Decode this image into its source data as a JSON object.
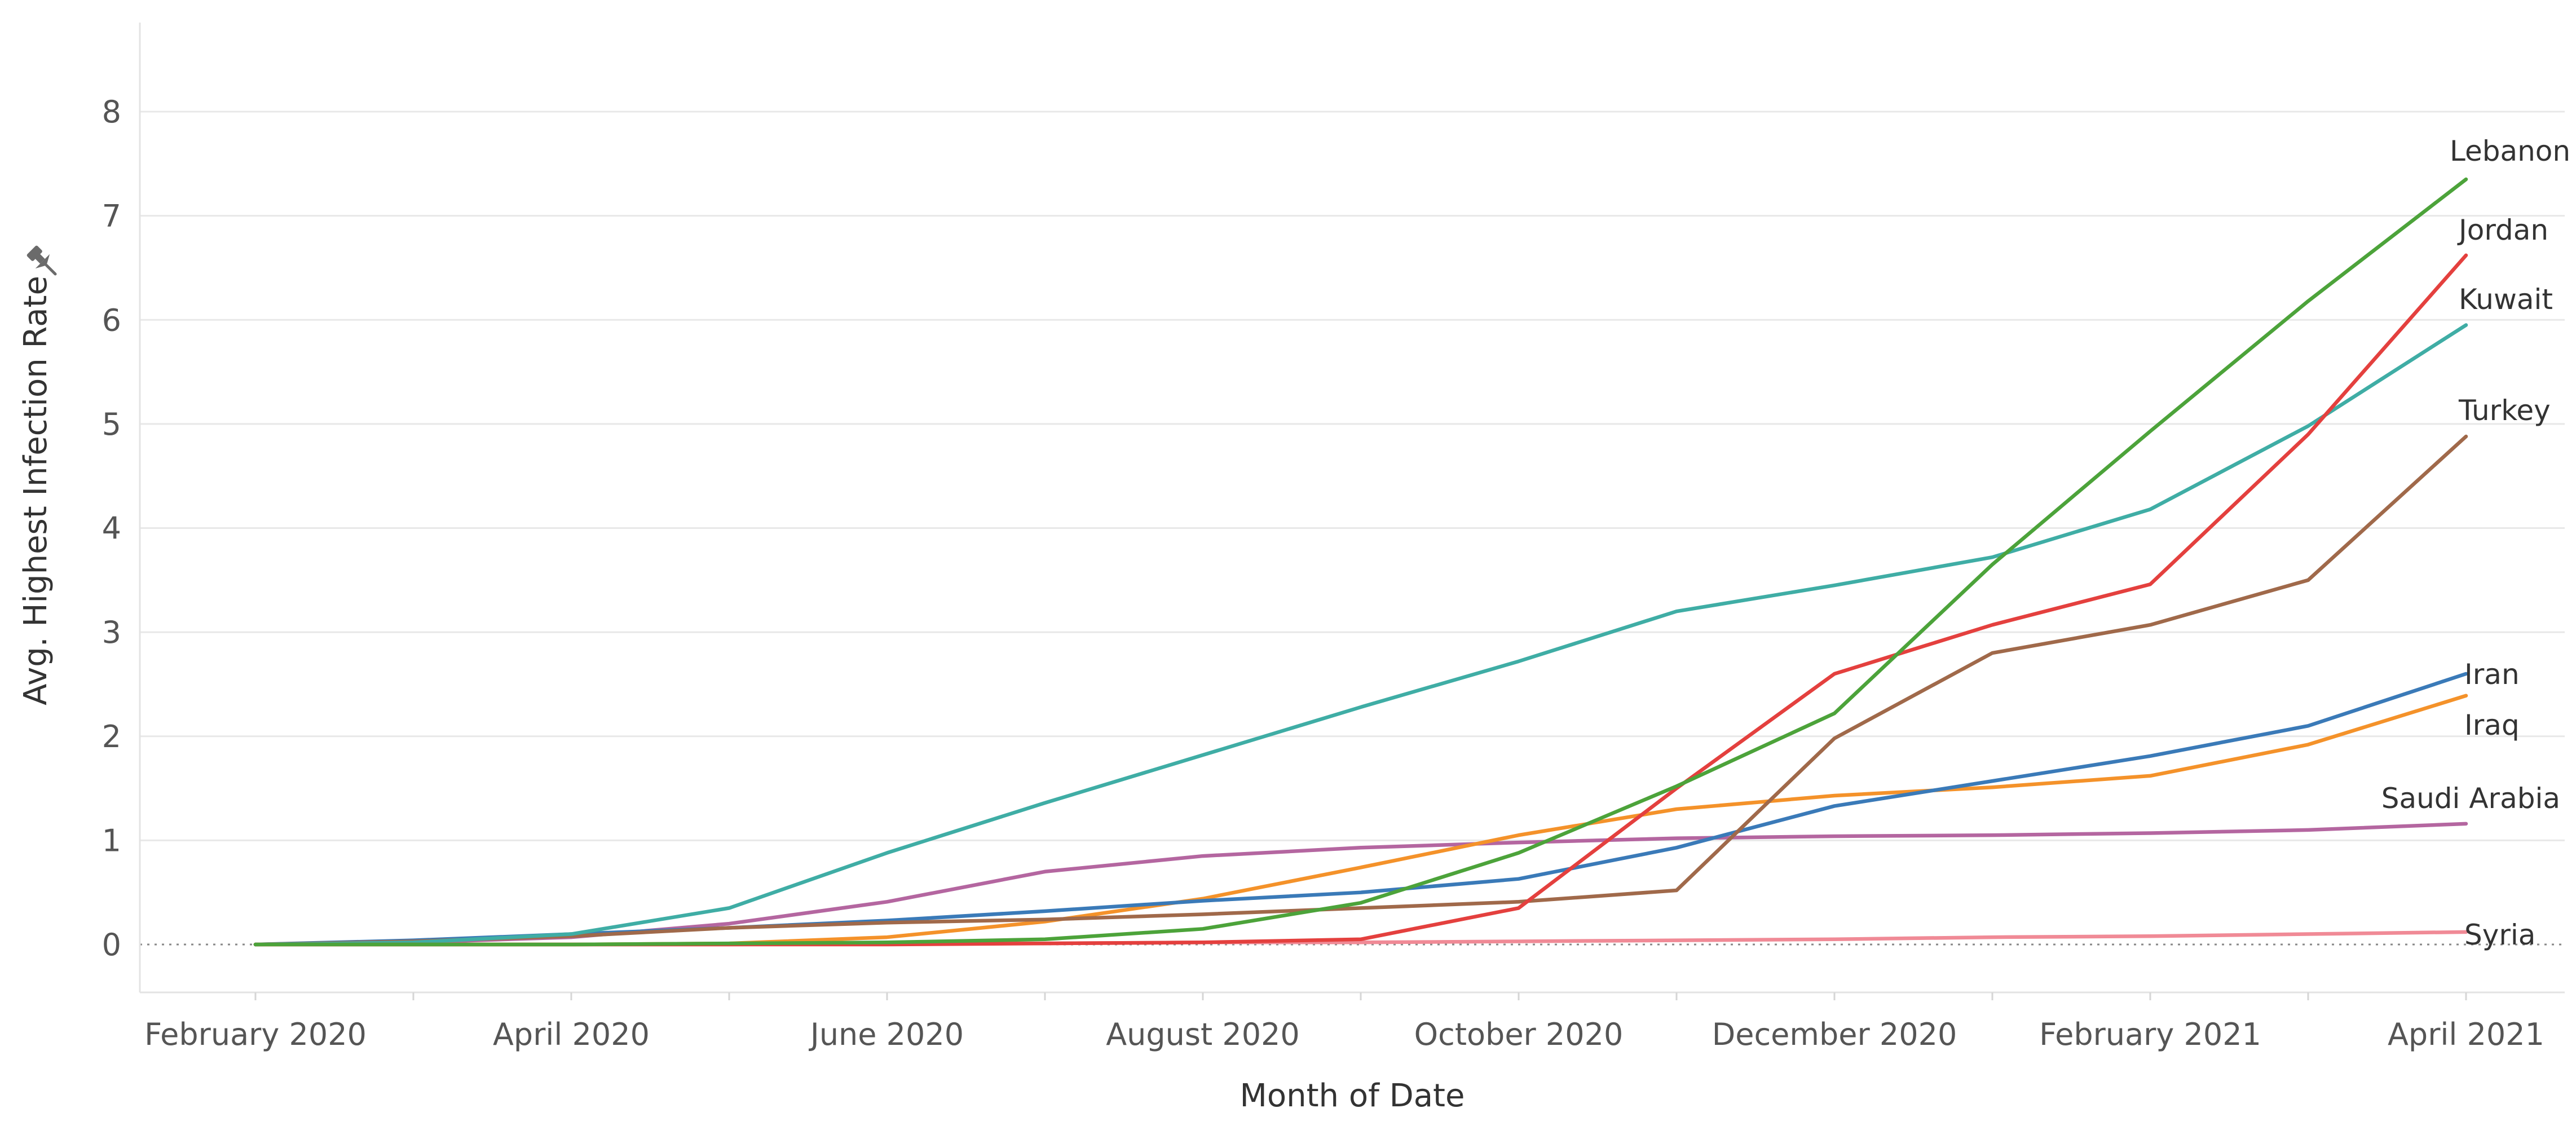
{
  "chart_data": {
    "type": "line",
    "title": "",
    "xlabel": "Month of Date",
    "ylabel": "Avg. Highest Infection Rate",
    "ylim": [
      0,
      8
    ],
    "yticks": [
      "0",
      "1",
      "2",
      "3",
      "4",
      "5",
      "6",
      "7",
      "8"
    ],
    "x": [
      "2020-02",
      "2020-03",
      "2020-04",
      "2020-05",
      "2020-06",
      "2020-07",
      "2020-08",
      "2020-09",
      "2020-10",
      "2020-11",
      "2020-12",
      "2021-01",
      "2021-02",
      "2021-03",
      "2021-04"
    ],
    "xtick_labels": [
      {
        "month": "2020-02",
        "label": "February 2020"
      },
      {
        "month": "2020-04",
        "label": "April 2020"
      },
      {
        "month": "2020-06",
        "label": "June 2020"
      },
      {
        "month": "2020-08",
        "label": "August 2020"
      },
      {
        "month": "2020-10",
        "label": "October 2020"
      },
      {
        "month": "2020-12",
        "label": "December 2020"
      },
      {
        "month": "2021-02",
        "label": "February 2021"
      },
      {
        "month": "2021-04",
        "label": "April 2021"
      }
    ],
    "grid": true,
    "zero_line_style": "dotted",
    "legend": "inline labels at line ends",
    "series": [
      {
        "name": "Lebanon",
        "color": "#4ca33a",
        "values": [
          0,
          0,
          0,
          0.01,
          0.02,
          0.05,
          0.15,
          0.4,
          0.88,
          1.52,
          2.22,
          3.65,
          4.93,
          6.18,
          7.35
        ]
      },
      {
        "name": "Jordan",
        "color": "#e4403e",
        "values": [
          0,
          0,
          0,
          0,
          0,
          0.01,
          0.02,
          0.05,
          0.35,
          1.5,
          2.6,
          3.07,
          3.46,
          4.9,
          6.62
        ]
      },
      {
        "name": "Kuwait",
        "color": "#3fada5",
        "values": [
          0,
          0.02,
          0.1,
          0.35,
          0.88,
          1.36,
          1.82,
          2.28,
          2.72,
          3.2,
          3.45,
          3.72,
          4.18,
          4.98,
          5.95
        ]
      },
      {
        "name": "Turkey",
        "color": "#a0694a",
        "values": [
          0,
          0.03,
          0.08,
          0.16,
          0.21,
          0.24,
          0.29,
          0.35,
          0.41,
          0.52,
          1.98,
          2.8,
          3.07,
          3.5,
          4.88
        ]
      },
      {
        "name": "Iran",
        "color": "#3a7ab8",
        "values": [
          0,
          0.04,
          0.1,
          0.16,
          0.23,
          0.32,
          0.42,
          0.5,
          0.63,
          0.93,
          1.33,
          1.57,
          1.81,
          2.1,
          2.6
        ]
      },
      {
        "name": "Iraq",
        "color": "#f4922a",
        "values": [
          0,
          0,
          0,
          0.01,
          0.07,
          0.22,
          0.44,
          0.74,
          1.05,
          1.3,
          1.43,
          1.51,
          1.62,
          1.92,
          2.39
        ]
      },
      {
        "name": "Saudi Arabia",
        "color": "#b466a0",
        "values": [
          0,
          0.02,
          0.07,
          0.2,
          0.41,
          0.7,
          0.85,
          0.93,
          0.98,
          1.02,
          1.04,
          1.05,
          1.07,
          1.1,
          1.16
        ]
      },
      {
        "name": "Syria",
        "color": "#f08a96",
        "values": [
          0,
          0,
          0,
          0,
          0.01,
          0.01,
          0.02,
          0.02,
          0.03,
          0.04,
          0.05,
          0.07,
          0.08,
          0.1,
          0.12
        ]
      }
    ]
  }
}
